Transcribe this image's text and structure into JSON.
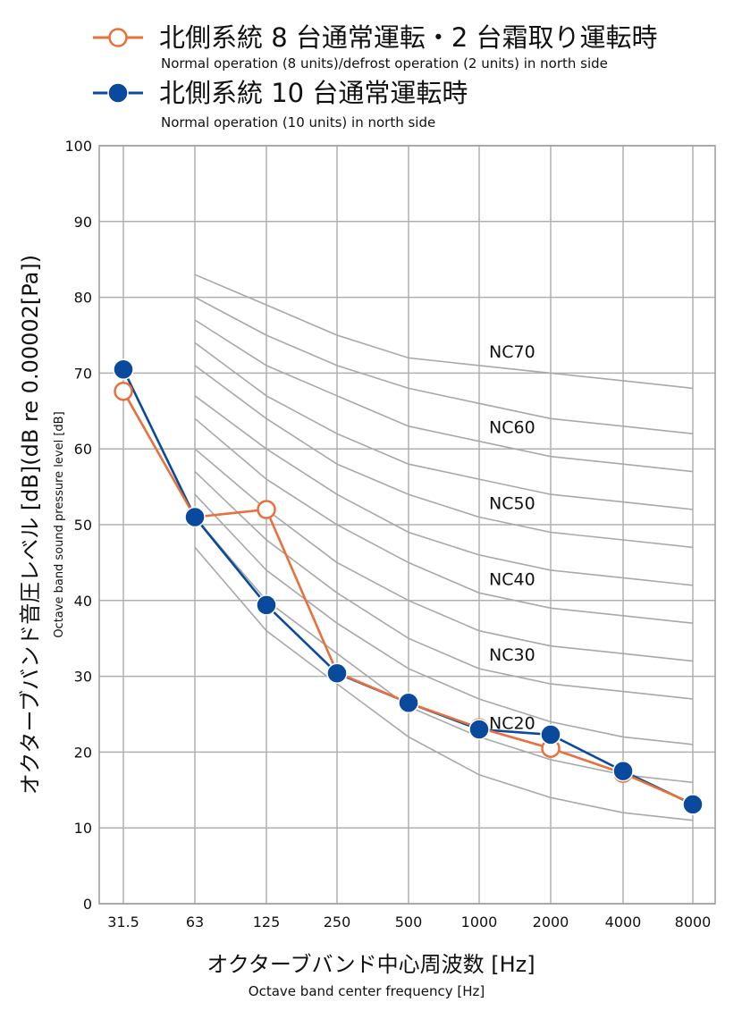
{
  "chart_data": {
    "type": "line",
    "x_scale": "log2 (octave bands)",
    "categories": [
      "31.5",
      "63",
      "125",
      "250",
      "500",
      "1000",
      "2000",
      "4000",
      "8000"
    ],
    "ylim": [
      0,
      100
    ],
    "yticks": [
      0,
      10,
      20,
      30,
      40,
      50,
      60,
      70,
      80,
      90,
      100
    ],
    "grid": true,
    "ylabel": "オクターブバンド音圧レベル [dB](dB re 0.00002[Pa])",
    "ylabel_sub": "Octave band sound pressure level [dB]",
    "xlabel": "オクターブバンド中心周波数 [Hz]",
    "xlabel_sub": "Octave band center frequency [Hz]",
    "legend_position": "top-left",
    "series": [
      {
        "name": "北側系統 8 台通常運転・2 台霜取り運転時",
        "name_sub": "Normal operation (8 units)/defrost operation (2 units) in north side",
        "color": "#e8703a",
        "marker": "open-circle",
        "values": [
          67.6,
          51.0,
          52.0,
          30.5,
          26.5,
          23.2,
          20.5,
          17.2,
          13.2
        ]
      },
      {
        "name": "北側系統 10 台通常運転時",
        "name_sub": "Normal operation (10 units) in north side",
        "color": "#0a4a9c",
        "marker": "filled-circle",
        "values": [
          70.5,
          51.0,
          39.4,
          30.4,
          26.5,
          23.0,
          22.3,
          17.5,
          13.1
        ]
      }
    ],
    "nc_curves": {
      "color": "#a8a8a8",
      "x_categories": [
        "63",
        "125",
        "250",
        "500",
        "1000",
        "2000",
        "4000",
        "8000"
      ],
      "curves": [
        {
          "nc": 70,
          "values": [
            83,
            79,
            75,
            72,
            71,
            70,
            69,
            68
          ]
        },
        {
          "nc": 65,
          "values": [
            80,
            75,
            71,
            68,
            66,
            64,
            63,
            62
          ]
        },
        {
          "nc": 60,
          "values": [
            77,
            71,
            67,
            63,
            61,
            59,
            58,
            57
          ]
        },
        {
          "nc": 55,
          "values": [
            74,
            67,
            62,
            58,
            56,
            54,
            53,
            52
          ]
        },
        {
          "nc": 50,
          "values": [
            71,
            64,
            58,
            54,
            51,
            49,
            48,
            47
          ]
        },
        {
          "nc": 45,
          "values": [
            67,
            60,
            54,
            49,
            46,
            44,
            43,
            42
          ]
        },
        {
          "nc": 40,
          "values": [
            64,
            56,
            50,
            45,
            41,
            39,
            38,
            37
          ]
        },
        {
          "nc": 35,
          "values": [
            60,
            52,
            45,
            40,
            36,
            34,
            33,
            32
          ]
        },
        {
          "nc": 30,
          "values": [
            57,
            48,
            41,
            35,
            31,
            29,
            28,
            27
          ]
        },
        {
          "nc": 25,
          "values": [
            54,
            44,
            37,
            31,
            27,
            24,
            22,
            21
          ]
        },
        {
          "nc": 20,
          "values": [
            51,
            40,
            33,
            26,
            22,
            19,
            17,
            16
          ]
        },
        {
          "nc": 15,
          "values": [
            47,
            36,
            29,
            22,
            17,
            14,
            12,
            11
          ]
        }
      ],
      "labels": [
        {
          "text": "NC70",
          "nc": 70
        },
        {
          "text": "NC60",
          "nc": 60
        },
        {
          "text": "NC50",
          "nc": 50
        },
        {
          "text": "NC40",
          "nc": 40
        },
        {
          "text": "NC30",
          "nc": 30
        },
        {
          "text": "NC20",
          "nc": 20
        }
      ]
    }
  }
}
